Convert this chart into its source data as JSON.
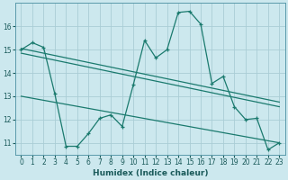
{
  "title": "",
  "xlabel": "Humidex (Indice chaleur)",
  "ylabel": "",
  "background_color": "#cce8ee",
  "grid_color": "#aacdd6",
  "line_color": "#1a7a6e",
  "xlim": [
    -0.5,
    23.5
  ],
  "ylim": [
    10.5,
    17.0
  ],
  "xticks": [
    0,
    1,
    2,
    3,
    4,
    5,
    6,
    7,
    8,
    9,
    10,
    11,
    12,
    13,
    14,
    15,
    16,
    17,
    18,
    19,
    20,
    21,
    22,
    23
  ],
  "yticks": [
    11,
    12,
    13,
    14,
    15,
    16
  ],
  "main_x": [
    0,
    1,
    2,
    3,
    4,
    5,
    6,
    7,
    8,
    9,
    10,
    11,
    12,
    13,
    14,
    15,
    16,
    17,
    18,
    19,
    20,
    21,
    22,
    23
  ],
  "main_y": [
    15.0,
    15.3,
    15.1,
    13.1,
    10.85,
    10.85,
    11.4,
    12.05,
    12.2,
    11.7,
    13.5,
    15.4,
    14.65,
    15.0,
    16.6,
    16.65,
    16.1,
    13.55,
    13.85,
    12.55,
    12.0,
    12.05,
    10.7,
    11.0
  ],
  "trend1_x": [
    0,
    23
  ],
  "trend1_y": [
    15.05,
    12.75
  ],
  "trend2_x": [
    0,
    23
  ],
  "trend2_y": [
    14.85,
    12.55
  ],
  "trend3_x": [
    0,
    23
  ],
  "trend3_y": [
    13.0,
    11.0
  ]
}
